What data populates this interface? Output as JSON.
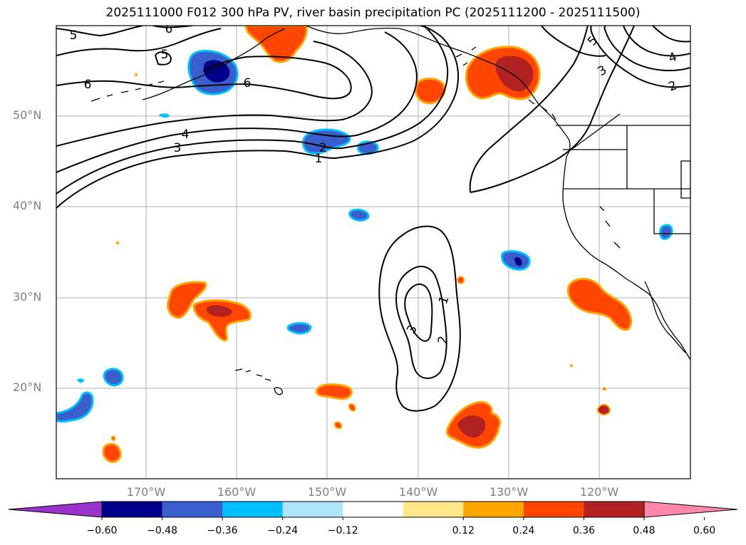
{
  "title": "2025111000 F012 300 hPa PV, river basin precipitation PC (2025111200 - 2025111500)",
  "map": {
    "lat_labels": [
      "50°N",
      "40°N",
      "30°N",
      "20°N"
    ],
    "lon_labels": [
      "170°W",
      "160°W",
      "150°W",
      "140°W",
      "130°W",
      "120°W"
    ],
    "contour_labels": [
      "6",
      "5",
      "6",
      "6",
      "4",
      "3",
      "2",
      "1",
      "1",
      "2",
      "3",
      "5",
      "3",
      "4",
      "2"
    ],
    "colors": {
      "grid": "#b0b0b0",
      "frame": "#000000",
      "coast": "#000000",
      "contour": "#000000"
    }
  },
  "colorbar": {
    "colors": [
      "#9933cc",
      "#00008b",
      "#3a5fcd",
      "#00bfff",
      "#aee4fa",
      "#ffffff",
      "#ffe88a",
      "#ffa500",
      "#ff4500",
      "#b22222",
      "#ff88aa"
    ],
    "ticks": [
      "−0.60",
      "−0.48",
      "−0.36",
      "−0.24",
      "−0.12",
      "0.12",
      "0.24",
      "0.36",
      "0.48",
      "0.60"
    ]
  }
}
